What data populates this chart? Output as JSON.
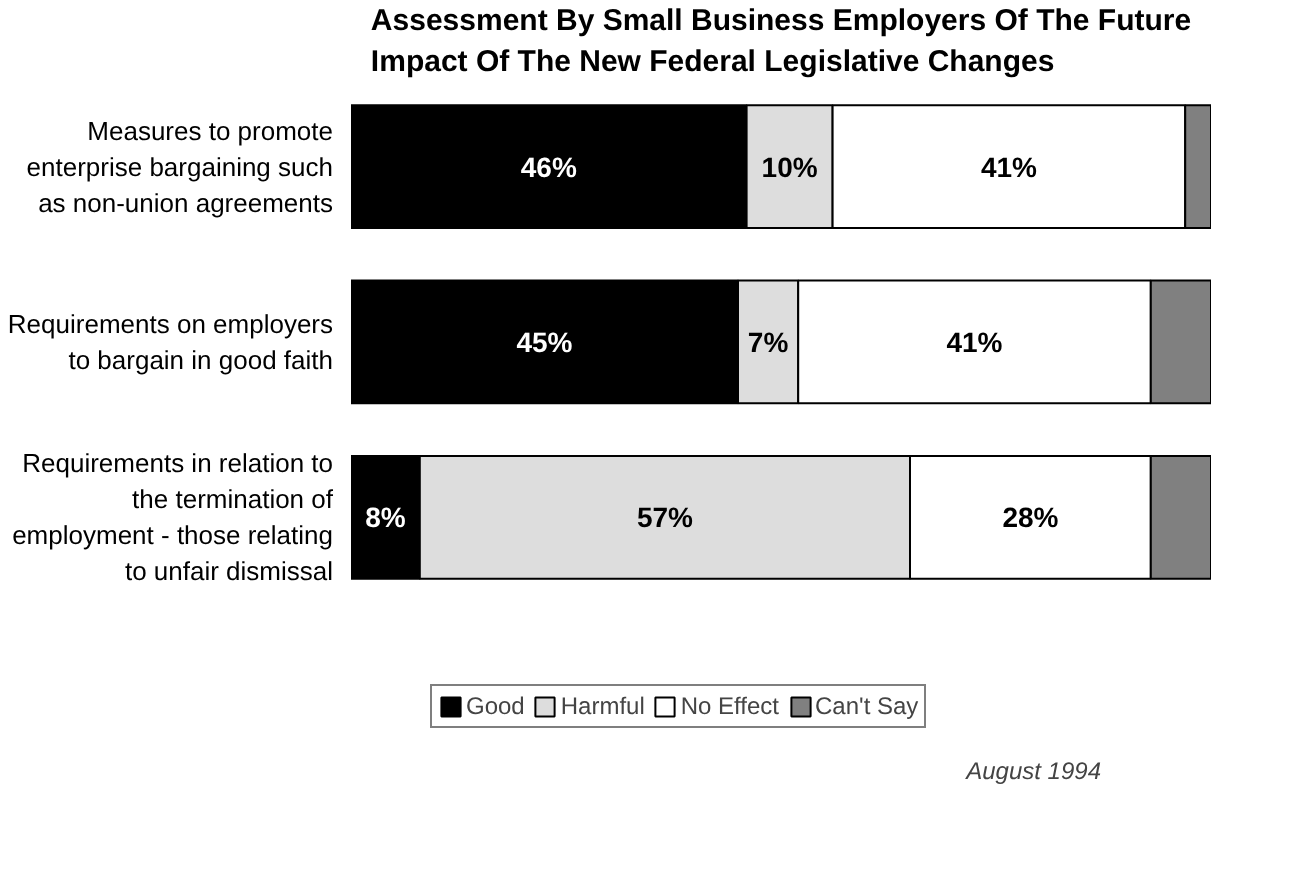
{
  "chart_data": {
    "type": "bar",
    "orientation": "horizontal",
    "stacked": true,
    "title": "Assessment By Small Business Employers Of The Future Impact Of The New Federal Legislative Changes",
    "categories": [
      "Measures to promote enterprise bargaining such as non-union agreements",
      "Requirements on employers to bargain in good faith",
      "Requirements in relation to the termination of employment - those relating to unfair dismissal"
    ],
    "series": [
      {
        "name": "Good",
        "color": "#000000",
        "values": [
          46,
          45,
          8
        ],
        "value_labels": [
          "46%",
          "45%",
          "8%"
        ]
      },
      {
        "name": "Harmful",
        "color": "#dddddd",
        "values": [
          10,
          7,
          57
        ],
        "value_labels": [
          "10%",
          "7%",
          "57%"
        ]
      },
      {
        "name": "No Effect",
        "color": "#ffffff",
        "values": [
          41,
          41,
          28
        ],
        "value_labels": [
          "41%",
          "41%",
          "28%"
        ]
      },
      {
        "name": "Can't Say",
        "color": "#808080",
        "values": [
          3,
          7,
          7
        ],
        "value_labels": [
          null,
          null,
          null
        ]
      }
    ],
    "xlim": [
      0,
      100
    ],
    "tick_labels": "y",
    "grid": false,
    "legend": "bottom",
    "annotations": [
      "August 1994"
    ]
  }
}
